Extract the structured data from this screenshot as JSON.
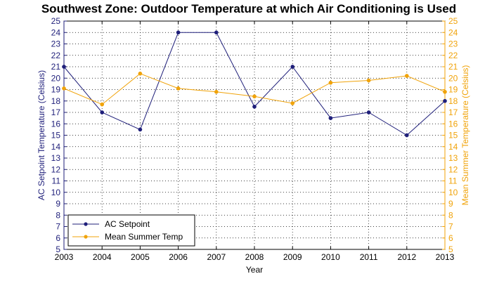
{
  "chart_data": {
    "type": "line",
    "title": "Southwest Zone: Outdoor Temperature at which Air Conditioning is Used",
    "xlabel": "Year",
    "ylabel_left": "AC Setpoint Temperature (Celsius)",
    "ylabel_right": "Mean Summer Temperature (Celsius)",
    "xlim": [
      2003,
      2013
    ],
    "ylim_left": [
      5,
      25
    ],
    "ylim_right": [
      5,
      25
    ],
    "x": [
      2003,
      2004,
      2005,
      2006,
      2007,
      2008,
      2009,
      2010,
      2011,
      2012,
      2013
    ],
    "x_tick_labels": [
      "2003",
      "2004",
      "2005",
      "2006",
      "2007",
      "2008",
      "2009",
      "2010",
      "2011",
      "2012",
      "2013"
    ],
    "y_tick_labels": [
      "5",
      "6",
      "7",
      "8",
      "9",
      "10",
      "11",
      "12",
      "13",
      "14",
      "15",
      "16",
      "17",
      "18",
      "19",
      "20",
      "21",
      "22",
      "23",
      "24",
      "25"
    ],
    "grid": true,
    "legend_position": "bottom-left",
    "series": [
      {
        "name": "AC Setpoint",
        "axis": "left",
        "color": "#1f1f7a",
        "values": [
          21,
          17,
          15.5,
          24,
          24,
          17.5,
          21,
          16.5,
          17,
          15,
          18
        ]
      },
      {
        "name": "Mean Summer Temp",
        "axis": "right",
        "color": "#f0a30a",
        "values": [
          19.1,
          17.7,
          20.4,
          19.1,
          18.8,
          18.4,
          17.8,
          19.6,
          19.8,
          20.2,
          18.8
        ]
      }
    ]
  }
}
